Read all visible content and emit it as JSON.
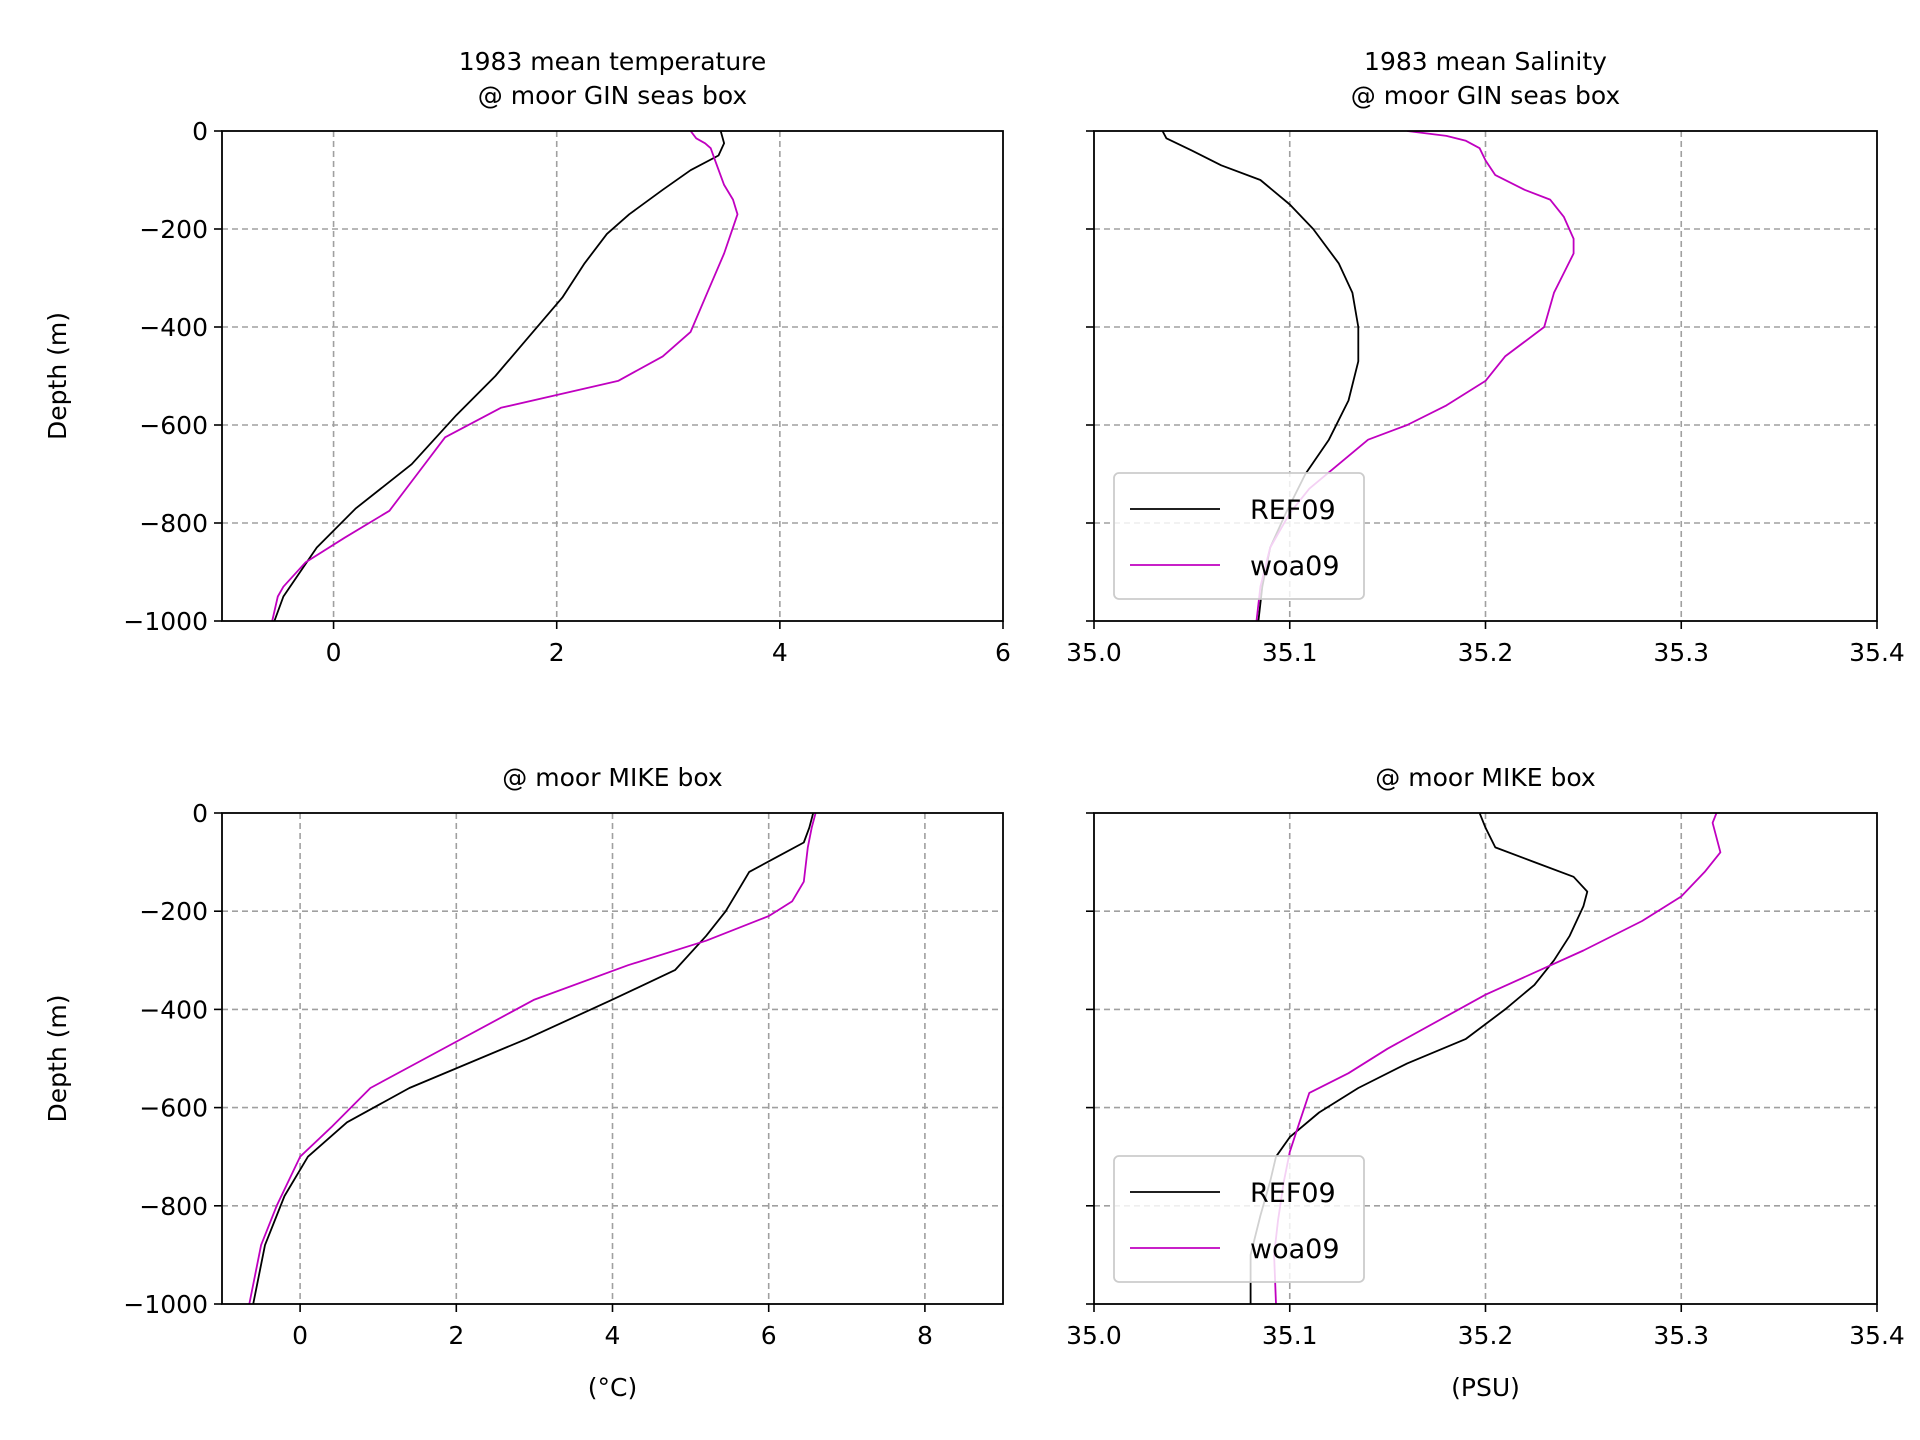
{
  "colors": {
    "REF09": "#000000",
    "woa09": "#c000c0",
    "grid": "#a0a0a0",
    "legend_border": "#cccccc"
  },
  "chart_data": [
    {
      "type": "line",
      "title_line1": "1983 mean temperature",
      "title_line2": "@ moor GIN seas box",
      "xlabel": "",
      "ylabel": "Depth (m)",
      "xlim": [
        -1,
        6
      ],
      "ylim": [
        -1000,
        0
      ],
      "xticks": [
        0,
        2,
        4,
        6
      ],
      "xtick_labels": [
        "0",
        "2",
        "4",
        "6"
      ],
      "yticks": [
        0,
        -200,
        -400,
        -600,
        -800,
        -1000
      ],
      "ytick_labels": [
        "0",
        "−200",
        "−400",
        "−600",
        "−800",
        "−1000"
      ],
      "show_ytick_labels": true,
      "grid": true,
      "legend": null,
      "series": [
        {
          "name": "REF09",
          "color": "#000000",
          "x": [
            3.47,
            3.5,
            3.45,
            3.2,
            2.95,
            2.65,
            2.45,
            2.25,
            2.05,
            1.75,
            1.45,
            1.1,
            0.7,
            0.2,
            -0.15,
            -0.3,
            -0.45,
            -0.53
          ],
          "y": [
            0,
            -25,
            -50,
            -80,
            -120,
            -170,
            -210,
            -270,
            -340,
            -420,
            -500,
            -580,
            -680,
            -770,
            -850,
            -900,
            -950,
            -1000
          ]
        },
        {
          "name": "woa09",
          "color": "#c000c0",
          "x": [
            3.2,
            3.25,
            3.33,
            3.38,
            3.42,
            3.5,
            3.58,
            3.62,
            3.5,
            3.35,
            3.2,
            2.95,
            2.55,
            1.5,
            1.0,
            0.75,
            0.5,
            0.1,
            -0.25,
            -0.45,
            -0.5,
            -0.55
          ],
          "y": [
            0,
            -15,
            -25,
            -35,
            -60,
            -110,
            -140,
            -170,
            -250,
            -330,
            -410,
            -460,
            -510,
            -565,
            -625,
            -700,
            -775,
            -830,
            -880,
            -930,
            -950,
            -1000
          ]
        }
      ]
    },
    {
      "type": "line",
      "title_line1": "1983 mean Salinity",
      "title_line2": "@ moor GIN seas box",
      "xlabel": "",
      "ylabel": "",
      "xlim": [
        35.0,
        35.4
      ],
      "ylim": [
        -1000,
        0
      ],
      "xticks": [
        35.0,
        35.1,
        35.2,
        35.3,
        35.4
      ],
      "xtick_labels": [
        "35.0",
        "35.1",
        "35.2",
        "35.3",
        "35.4"
      ],
      "yticks": [
        0,
        -200,
        -400,
        -600,
        -800,
        -1000
      ],
      "ytick_labels": [
        "",
        "",
        "",
        "",
        "",
        ""
      ],
      "show_ytick_labels": false,
      "grid": true,
      "legend": {
        "position": "lower left",
        "entries": [
          "REF09",
          "woa09"
        ]
      },
      "series": [
        {
          "name": "REF09",
          "color": "#000000",
          "x": [
            35.035,
            35.037,
            35.05,
            35.065,
            35.085,
            35.1,
            35.112,
            35.125,
            35.132,
            35.135,
            35.135,
            35.13,
            35.12,
            35.108,
            35.098,
            35.09,
            35.086,
            35.084
          ],
          "y": [
            0,
            -15,
            -40,
            -70,
            -100,
            -150,
            -200,
            -270,
            -330,
            -400,
            -470,
            -550,
            -630,
            -700,
            -780,
            -850,
            -930,
            -1000
          ]
        },
        {
          "name": "woa09",
          "color": "#c000c0",
          "x": [
            35.16,
            35.18,
            35.19,
            35.197,
            35.2,
            35.205,
            35.22,
            35.233,
            35.24,
            35.245,
            35.245,
            35.24,
            35.235,
            35.23,
            35.21,
            35.2,
            35.18,
            35.16,
            35.14,
            35.125,
            35.11,
            35.1,
            35.09,
            35.085,
            35.083
          ],
          "y": [
            0,
            -10,
            -20,
            -35,
            -60,
            -90,
            -120,
            -140,
            -175,
            -220,
            -250,
            -290,
            -330,
            -400,
            -460,
            -510,
            -560,
            -600,
            -630,
            -680,
            -730,
            -780,
            -850,
            -930,
            -1000
          ]
        }
      ]
    },
    {
      "type": "line",
      "title_line1": "@ moor MIKE box",
      "title_line2": "",
      "xlabel": "(°C)",
      "ylabel": "Depth (m)",
      "xlim": [
        -1,
        9
      ],
      "ylim": [
        -1000,
        0
      ],
      "xticks": [
        0,
        2,
        4,
        6,
        8
      ],
      "xtick_labels": [
        "0",
        "2",
        "4",
        "6",
        "8"
      ],
      "yticks": [
        0,
        -200,
        -400,
        -600,
        -800,
        -1000
      ],
      "ytick_labels": [
        "0",
        "−200",
        "−400",
        "−600",
        "−800",
        "−1000"
      ],
      "show_ytick_labels": true,
      "grid": true,
      "legend": null,
      "series": [
        {
          "name": "REF09",
          "color": "#000000",
          "x": [
            6.57,
            6.52,
            6.45,
            6.1,
            5.75,
            5.6,
            5.45,
            5.2,
            4.8,
            4.0,
            2.9,
            1.4,
            0.6,
            0.1,
            -0.2,
            -0.45,
            -0.6
          ],
          "y": [
            0,
            -30,
            -60,
            -90,
            -120,
            -160,
            -200,
            -250,
            -320,
            -380,
            -460,
            -560,
            -630,
            -700,
            -780,
            -880,
            -1000
          ]
        },
        {
          "name": "woa09",
          "color": "#c000c0",
          "x": [
            6.6,
            6.55,
            6.5,
            6.45,
            6.3,
            6.0,
            5.2,
            4.2,
            3.0,
            1.6,
            0.9,
            0.4,
            0.0,
            -0.3,
            -0.5,
            -0.65
          ],
          "y": [
            0,
            -30,
            -70,
            -140,
            -180,
            -210,
            -260,
            -310,
            -380,
            -500,
            -560,
            -640,
            -700,
            -800,
            -880,
            -1000
          ]
        }
      ]
    },
    {
      "type": "line",
      "title_line1": "@ moor MIKE box",
      "title_line2": "",
      "xlabel": "(PSU)",
      "ylabel": "",
      "xlim": [
        35.0,
        35.4
      ],
      "ylim": [
        -1000,
        0
      ],
      "xticks": [
        35.0,
        35.1,
        35.2,
        35.3,
        35.4
      ],
      "xtick_labels": [
        "35.0",
        "35.1",
        "35.2",
        "35.3",
        "35.4"
      ],
      "yticks": [
        0,
        -200,
        -400,
        -600,
        -800,
        -1000
      ],
      "ytick_labels": [
        "",
        "",
        "",
        "",
        "",
        ""
      ],
      "show_ytick_labels": false,
      "grid": true,
      "legend": {
        "position": "lower left",
        "entries": [
          "REF09",
          "woa09"
        ]
      },
      "series": [
        {
          "name": "REF09",
          "color": "#000000",
          "x": [
            35.197,
            35.2,
            35.205,
            35.225,
            35.245,
            35.252,
            35.25,
            35.243,
            35.235,
            35.225,
            35.21,
            35.19,
            35.16,
            35.135,
            35.115,
            35.1,
            35.093,
            35.09,
            35.085,
            35.08,
            35.08
          ],
          "y": [
            0,
            -30,
            -70,
            -100,
            -130,
            -160,
            -190,
            -250,
            -300,
            -350,
            -400,
            -460,
            -510,
            -560,
            -610,
            -660,
            -700,
            -750,
            -820,
            -900,
            -1000
          ]
        },
        {
          "name": "woa09",
          "color": "#c000c0",
          "x": [
            35.318,
            35.316,
            35.32,
            35.312,
            35.3,
            35.28,
            35.25,
            35.2,
            35.15,
            35.13,
            35.11,
            35.105,
            35.1,
            35.097,
            35.094,
            35.092,
            35.093
          ],
          "y": [
            0,
            -20,
            -80,
            -120,
            -170,
            -220,
            -280,
            -370,
            -480,
            -530,
            -570,
            -630,
            -690,
            -750,
            -830,
            -900,
            -1000
          ]
        }
      ]
    }
  ]
}
